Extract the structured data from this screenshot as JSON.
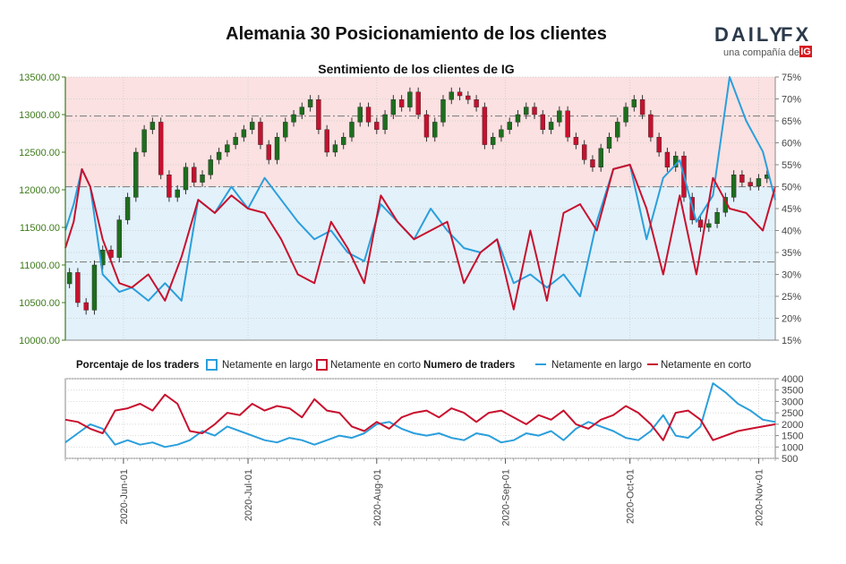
{
  "chart_data": [
    {
      "type": "candlestick",
      "title": "Alemania 30 Posicionamiento de los clientes",
      "subtitle": "Sentimiento de los clientes de IG",
      "y_left": {
        "ylim": [
          10000,
          13500
        ],
        "ticks": [
          "10000.00",
          "10500.00",
          "11000.00",
          "11500.00",
          "12000.00",
          "12500.00",
          "13000.00",
          "13500.00"
        ],
        "tick_values": [
          10000,
          10500,
          11000,
          11500,
          12000,
          12500,
          13000,
          13500
        ]
      },
      "y_right": {
        "ylim": [
          15,
          75
        ],
        "ticks": [
          "15%",
          "20%",
          "25%",
          "30%",
          "35%",
          "40%",
          "45%",
          "50%",
          "55%",
          "60%",
          "65%",
          "70%",
          "75%"
        ],
        "tick_values": [
          15,
          20,
          25,
          30,
          35,
          40,
          45,
          50,
          55,
          60,
          65,
          70,
          75
        ]
      },
      "reference_lines": {
        "price_high": 12980,
        "price_mid": 12040,
        "price_low": 11040
      },
      "x_ticks": [
        "2020-Jun-01",
        "2020-Jul-01",
        "2020-Aug-01",
        "2020-Sep-01",
        "2020-Oct-01",
        "2020-Nov-01"
      ],
      "x_tick_days": [
        14,
        44,
        75,
        106,
        136,
        167
      ],
      "total_days": 171,
      "series": [
        {
          "name": "Netamente en largo",
          "color": "#2b9fdc",
          "x": [
            0,
            2,
            4,
            6,
            9,
            13,
            16,
            20,
            24,
            28,
            32,
            36,
            40,
            44,
            48,
            52,
            56,
            60,
            64,
            68,
            72,
            76,
            80,
            84,
            88,
            92,
            96,
            100,
            104,
            108,
            112,
            116,
            120,
            124,
            128,
            132,
            136,
            140,
            144,
            148,
            152,
            156,
            160,
            164,
            168,
            171
          ],
          "values": [
            40,
            46,
            54,
            50,
            30,
            26,
            27,
            24,
            28,
            24,
            47,
            44,
            50,
            45,
            52,
            47,
            42,
            38,
            40,
            35,
            33,
            46,
            42,
            38,
            45,
            40,
            36,
            35,
            38,
            28,
            30,
            27,
            30,
            25,
            42,
            54,
            55,
            38,
            52,
            56,
            42,
            48,
            75,
            65,
            58,
            47
          ]
        },
        {
          "name": "Netamente en corto",
          "color": "#c8102e",
          "x": [
            0,
            2,
            4,
            6,
            9,
            13,
            16,
            20,
            24,
            28,
            32,
            36,
            40,
            44,
            48,
            52,
            56,
            60,
            64,
            68,
            72,
            76,
            80,
            84,
            88,
            92,
            96,
            100,
            104,
            108,
            112,
            116,
            120,
            124,
            128,
            132,
            136,
            140,
            144,
            148,
            152,
            156,
            160,
            164,
            168,
            171
          ],
          "values": [
            36,
            42,
            54,
            50,
            38,
            28,
            27,
            30,
            24,
            34,
            47,
            44,
            48,
            45,
            44,
            38,
            30,
            28,
            42,
            36,
            28,
            48,
            42,
            38,
            40,
            42,
            28,
            35,
            38,
            22,
            40,
            24,
            44,
            46,
            40,
            54,
            55,
            45,
            30,
            48,
            30,
            52,
            45,
            44,
            40,
            50
          ]
        },
        {
          "name": "Alemania 30",
          "type": "ohlc",
          "x": [
            1,
            3,
            5,
            7,
            9,
            11,
            13,
            15,
            17,
            19,
            21,
            23,
            25,
            27,
            29,
            31,
            33,
            35,
            37,
            39,
            41,
            43,
            45,
            47,
            49,
            51,
            53,
            55,
            57,
            59,
            61,
            63,
            65,
            67,
            69,
            71,
            73,
            75,
            77,
            79,
            81,
            83,
            85,
            87,
            89,
            91,
            93,
            95,
            97,
            99,
            101,
            103,
            105,
            107,
            109,
            111,
            113,
            115,
            117,
            119,
            121,
            123,
            125,
            127,
            129,
            131,
            133,
            135,
            137,
            139,
            141,
            143,
            145,
            147,
            149,
            151,
            153,
            155,
            157,
            159,
            161,
            163,
            165,
            167,
            169
          ],
          "close": [
            10900,
            10500,
            10400,
            11000,
            11200,
            11100,
            11600,
            11900,
            12500,
            12800,
            12900,
            12200,
            11900,
            12000,
            12300,
            12100,
            12200,
            12400,
            12500,
            12600,
            12700,
            12800,
            12900,
            12600,
            12400,
            12700,
            12900,
            13000,
            13100,
            13200,
            12800,
            12500,
            12600,
            12700,
            12900,
            13100,
            12900,
            12800,
            13000,
            13200,
            13100,
            13300,
            13000,
            12700,
            12900,
            13200,
            13300,
            13250,
            13200,
            13100,
            12600,
            12700,
            12800,
            12900,
            13000,
            13100,
            13000,
            12800,
            12900,
            13050,
            12700,
            12600,
            12400,
            12300,
            12550,
            12700,
            12900,
            13100,
            13200,
            13000,
            12700,
            12500,
            12300,
            12450,
            11900,
            11600,
            11500,
            11550,
            11700,
            11900,
            12200,
            12100,
            12050,
            12150,
            12200
          ]
        },
        {
          "name": "Netamente en largo (traders)",
          "color": "#2b9fdc",
          "panel": "bottom",
          "x": [
            0,
            3,
            6,
            9,
            12,
            15,
            18,
            21,
            24,
            27,
            30,
            33,
            36,
            39,
            42,
            45,
            48,
            51,
            54,
            57,
            60,
            63,
            66,
            69,
            72,
            75,
            78,
            81,
            84,
            87,
            90,
            93,
            96,
            99,
            102,
            105,
            108,
            111,
            114,
            117,
            120,
            123,
            126,
            129,
            132,
            135,
            138,
            141,
            144,
            147,
            150,
            153,
            156,
            159,
            162,
            165,
            168,
            171
          ],
          "values": [
            1200,
            1600,
            2000,
            1800,
            1100,
            1300,
            1100,
            1200,
            1000,
            1100,
            1300,
            1700,
            1500,
            1900,
            1700,
            1500,
            1300,
            1200,
            1400,
            1300,
            1100,
            1300,
            1500,
            1400,
            1600,
            2000,
            2100,
            1800,
            1600,
            1500,
            1600,
            1400,
            1300,
            1600,
            1500,
            1200,
            1300,
            1600,
            1500,
            1700,
            1300,
            1800,
            2100,
            1900,
            1700,
            1400,
            1300,
            1700,
            2400,
            1500,
            1400,
            1900,
            3800,
            3400,
            2900,
            2600,
            2200,
            2100
          ]
        },
        {
          "name": "Netamente en corto (traders)",
          "color": "#c8102e",
          "panel": "bottom",
          "x": [
            0,
            3,
            6,
            9,
            12,
            15,
            18,
            21,
            24,
            27,
            30,
            33,
            36,
            39,
            42,
            45,
            48,
            51,
            54,
            57,
            60,
            63,
            66,
            69,
            72,
            75,
            78,
            81,
            84,
            87,
            90,
            93,
            96,
            99,
            102,
            105,
            108,
            111,
            114,
            117,
            120,
            123,
            126,
            129,
            132,
            135,
            138,
            141,
            144,
            147,
            150,
            153,
            156,
            159,
            162,
            165,
            168,
            171
          ],
          "values": [
            2200,
            2100,
            1800,
            1600,
            2600,
            2700,
            2900,
            2600,
            3300,
            2900,
            1700,
            1600,
            2000,
            2500,
            2400,
            2900,
            2600,
            2800,
            2700,
            2300,
            3100,
            2600,
            2500,
            1900,
            1700,
            2100,
            1800,
            2300,
            2500,
            2600,
            2300,
            2700,
            2500,
            2100,
            2500,
            2600,
            2300,
            2000,
            2400,
            2200,
            2600,
            2000,
            1800,
            2200,
            2400,
            2800,
            2500,
            2000,
            1300,
            2500,
            2600,
            2200,
            1300,
            1500,
            1700,
            1800,
            1900,
            2000
          ]
        }
      ]
    }
  ],
  "bottom_panel": {
    "ylim": [
      500,
      4000
    ],
    "ticks": [
      "500",
      "1000",
      "1500",
      "2000",
      "2500",
      "3000",
      "3500",
      "4000"
    ],
    "tick_values": [
      500,
      1000,
      1500,
      2000,
      2500,
      3000,
      3500,
      4000
    ]
  },
  "legend": {
    "pct_title": "Porcentaje de los traders",
    "pct_long": "Netamente en largo",
    "pct_short": "Netamente en corto",
    "num_title": "Numero de traders",
    "num_long": "Netamente en largo",
    "num_short": "Netamente en corto"
  },
  "logo": {
    "brand_left": "DAILY",
    "brand_right": "FX",
    "tagline": "una compañía de",
    "ig": "IG",
    "brand_color": "#2b3a4a",
    "accent_color": "#e7792b",
    "ig_color": "#d71920"
  },
  "colors": {
    "short_zone": "#fbe1e1",
    "long_zone": "#e3f1fa",
    "candle_up": "#1e6e1e",
    "candle_down": "#c8102e",
    "axis_left": "#3d7a1a"
  }
}
